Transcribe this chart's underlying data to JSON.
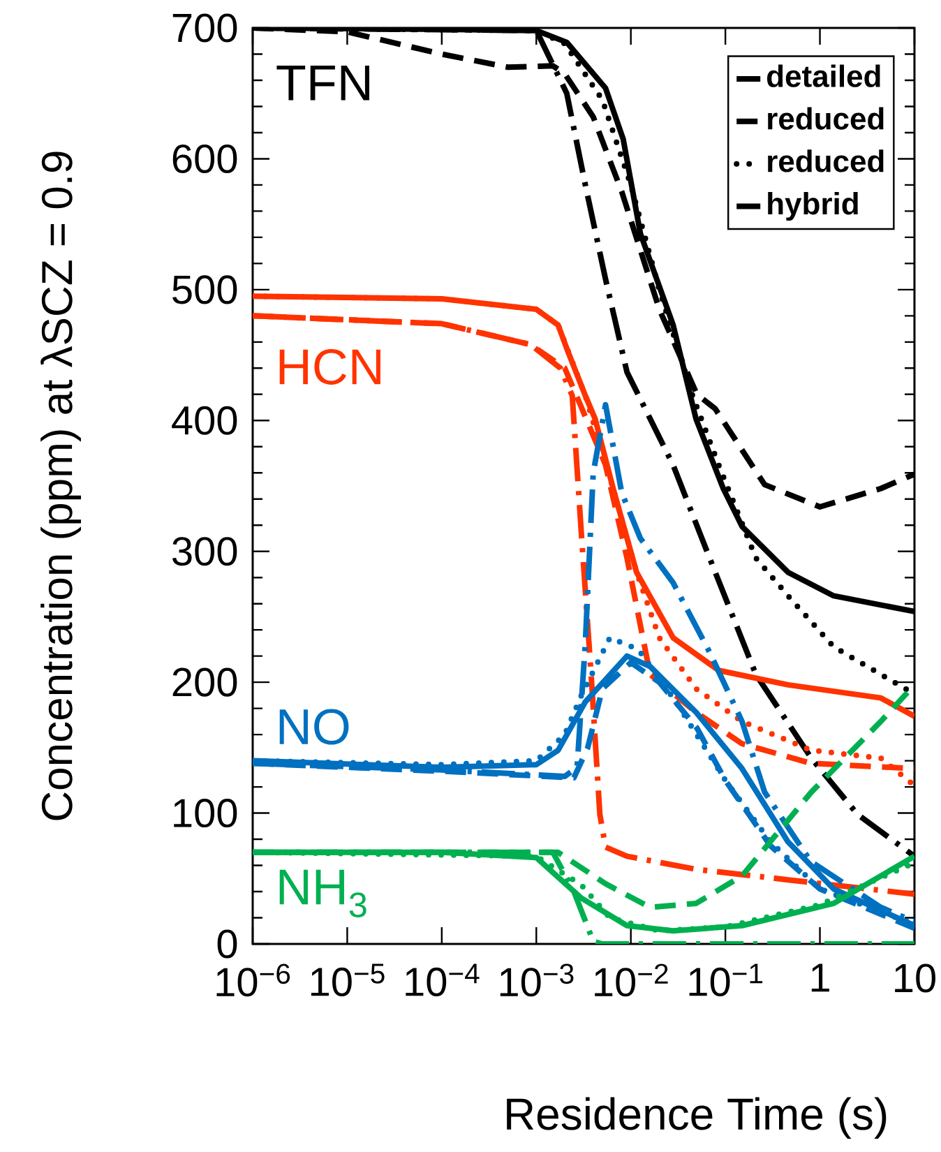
{
  "chart_data": {
    "type": "line",
    "xlabel": "Residence Time (s)",
    "ylabel": "Concentration (ppm) at λSCZ = 0.9",
    "log": "x",
    "legend": "top right",
    "xlim": [
      1e-06,
      10
    ],
    "ylim": [
      0,
      700
    ],
    "xticks": [
      {
        "value": 1e-06,
        "label": "10$^{−6}$"
      },
      {
        "value": 1e-05,
        "label": "10$^{−5}$"
      },
      {
        "value": 0.0001,
        "label": "10$^{−4}$"
      },
      {
        "value": 0.001,
        "label": "10$^{−3}$"
      },
      {
        "value": 0.01,
        "label": "10$^{−2}$"
      },
      {
        "value": 0.1,
        "label": "10$^{−1}$"
      },
      1,
      10
    ],
    "yticks": [
      0,
      100,
      200,
      300,
      400,
      500,
      600,
      700
    ],
    "annotations": [
      "TFN",
      "HCN",
      "NO",
      "NH$_{3}$"
    ],
    "series": [
      {
        "name": "detailed",
        "color": "#000000",
        "line_style": "solid",
        "x": [
          1e-06,
          0.0001,
          0.001,
          0.0021,
          0.0054,
          0.0083,
          0.0126,
          0.028,
          0.049,
          0.095,
          0.15,
          0.46,
          1.4,
          10
        ],
        "values": [
          700,
          699,
          698,
          689,
          654,
          615,
          543,
          473,
          401,
          348,
          319,
          284,
          266,
          254
        ]
      },
      {
        "name": "reduced",
        "color": "#000000",
        "line_style": "dashed",
        "x": [
          1e-06,
          1e-05,
          0.0001,
          0.0005,
          0.0015,
          0.002,
          0.004,
          0.008,
          0.02,
          0.05,
          0.078,
          0.26,
          1,
          4.4,
          10
        ],
        "values": [
          700,
          697,
          680,
          670,
          671,
          665,
          632,
          575,
          485,
          420,
          409,
          351,
          334,
          348,
          359
        ]
      },
      {
        "name": "reduced",
        "color": "#000000",
        "line_style": "dotted",
        "x": [
          1e-06,
          0.001,
          0.002,
          0.005,
          0.01,
          0.02,
          0.045,
          0.085,
          0.21,
          0.46,
          1.4,
          4.4,
          10
        ],
        "values": [
          700,
          698,
          688,
          645,
          580,
          500,
          419,
          366,
          295,
          266,
          227,
          206,
          191
        ]
      },
      {
        "name": "hybrid",
        "color": "#000000",
        "line_style": "dashdot",
        "x": [
          1e-06,
          0.001,
          0.0021,
          0.0033,
          0.0054,
          0.0091,
          0.028,
          0.068,
          0.21,
          0.81,
          2.5,
          10
        ],
        "values": [
          700,
          698,
          650,
          580,
          508,
          437,
          366,
          295,
          206,
          142,
          99,
          67
        ]
      },
      {
        "color": "#ff3300",
        "line_style": "solid",
        "x": [
          1e-06,
          0.0001,
          0.001,
          0.0017,
          0.0021,
          0.0033,
          0.0042,
          0.0065,
          0.0115,
          0.028,
          0.085,
          0.46,
          4.4,
          10
        ],
        "values": [
          495,
          493,
          485,
          473,
          455,
          419,
          401,
          348,
          284,
          234,
          209,
          198,
          188,
          174
        ]
      },
      {
        "color": "#ff3300",
        "line_style": "dashed",
        "x": [
          1e-06,
          0.0001,
          0.00087,
          0.002,
          0.003,
          0.0054,
          0.0091,
          0.016,
          0.049,
          0.15,
          0.81,
          10
        ],
        "values": [
          480,
          474,
          458,
          440,
          410,
          366,
          295,
          206,
          177,
          153,
          138,
          134
        ]
      },
      {
        "color": "#ff3300",
        "line_style": "dotted",
        "x": [
          1e-06,
          0.0001,
          0.001,
          0.0017,
          0.0033,
          0.0065,
          0.0115,
          0.02,
          0.049,
          0.15,
          0.81,
          4.4,
          10
        ],
        "values": [
          495,
          493,
          485,
          473,
          419,
          348,
          284,
          234,
          195,
          170,
          148,
          142,
          121
        ]
      },
      {
        "color": "#ff3300",
        "line_style": "dashdot",
        "x": [
          1e-06,
          0.0001,
          0.00087,
          0.0018,
          0.0024,
          0.003,
          0.0038,
          0.0047,
          0.0054,
          0.0091,
          0.049,
          0.46,
          10
        ],
        "values": [
          480,
          474,
          458,
          440,
          419,
          313,
          206,
          99,
          74,
          67,
          57,
          49,
          38
        ]
      },
      {
        "color": "#0070c0",
        "line_style": "solid",
        "x": [
          1e-06,
          0.0001,
          0.001,
          0.0017,
          0.0033,
          0.0091,
          0.016,
          0.049,
          0.15,
          0.46,
          1.4,
          10
        ],
        "values": [
          140,
          135,
          137,
          148,
          185,
          220,
          212,
          177,
          134,
          78,
          42,
          14
        ]
      },
      {
        "color": "#0070c0",
        "line_style": "dashed",
        "x": [
          1e-06,
          0.0001,
          0.0025,
          0.0035,
          0.005,
          0.01,
          0.02,
          0.05,
          0.1,
          0.3,
          1,
          10
        ],
        "values": [
          138,
          132,
          127,
          150,
          195,
          215,
          200,
          165,
          125,
          75,
          42,
          12
        ]
      },
      {
        "color": "#0070c0",
        "line_style": "dotted",
        "x": [
          1e-06,
          0.0001,
          0.001,
          0.002,
          0.003,
          0.006,
          0.012,
          0.03,
          0.1,
          0.3,
          1,
          10
        ],
        "values": [
          140,
          137,
          140,
          160,
          190,
          234,
          225,
          185,
          125,
          78,
          42,
          15
        ]
      },
      {
        "color": "#0070c0",
        "line_style": "dashdot",
        "x": [
          1e-06,
          0.0001,
          0.002,
          0.0027,
          0.0033,
          0.004,
          0.0054,
          0.008,
          0.0126,
          0.028,
          0.068,
          0.15,
          0.26,
          0.8,
          4.4,
          10
        ],
        "values": [
          138,
          133,
          128,
          135,
          230,
          360,
          412,
          345,
          310,
          276,
          223,
          170,
          116,
          63,
          28,
          17
        ]
      },
      {
        "color": "#00b050",
        "line_style": "solid",
        "x": [
          1e-06,
          0.0001,
          0.001,
          0.003,
          0.0091,
          0.028,
          0.15,
          1.4,
          10
        ],
        "values": [
          70,
          70,
          66,
          35,
          14,
          10,
          14,
          31,
          67
        ]
      },
      {
        "color": "#00b050",
        "line_style": "dashed",
        "x": [
          1e-06,
          0.0001,
          0.0017,
          0.0054,
          0.016,
          0.049,
          0.15,
          0.81,
          4.4,
          10
        ],
        "values": [
          70,
          70,
          70,
          46,
          28,
          31,
          52,
          116,
          170,
          198
        ]
      },
      {
        "color": "#00b050",
        "line_style": "dotted",
        "x": [
          1e-06,
          0.001,
          0.003,
          0.006,
          0.02,
          0.1,
          1,
          10
        ],
        "values": [
          70,
          67,
          45,
          20,
          10,
          13,
          30,
          62
        ]
      },
      {
        "color": "#00b050",
        "line_style": "dashdot",
        "x": [
          1e-06,
          0.001,
          0.0015,
          0.0025,
          0.004,
          0.005,
          10
        ],
        "values": [
          70,
          70,
          70,
          40,
          2,
          0,
          0
        ]
      }
    ]
  }
}
